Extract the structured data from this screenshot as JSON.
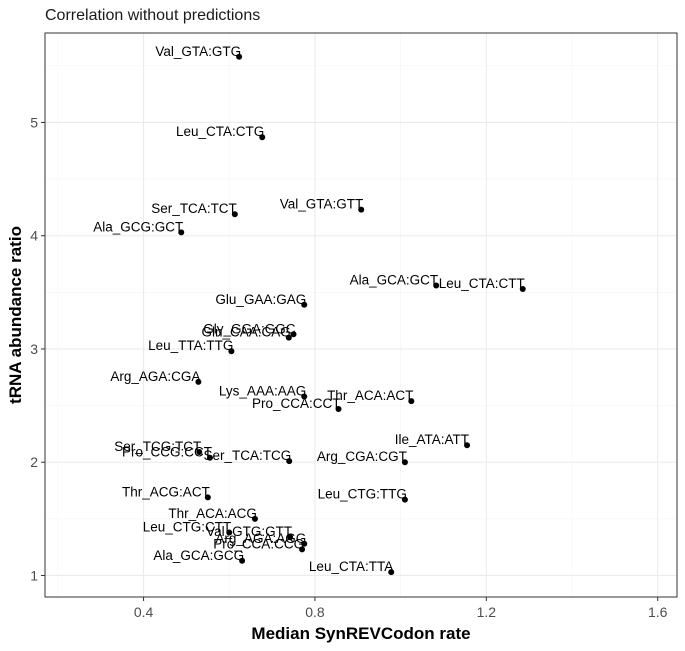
{
  "chart_data": {
    "type": "scatter",
    "title": "Correlation without predictions",
    "xlabel": "Median SynREVCodon rate",
    "ylabel": "tRNA abundance ratio",
    "xlim": [
      0.17,
      1.645
    ],
    "ylim": [
      0.81,
      5.79
    ],
    "x_ticks": [
      0.4,
      0.8,
      1.2,
      1.6
    ],
    "x_tick_labels": [
      "0.4",
      "0.8",
      "1.2",
      "1.6"
    ],
    "y_ticks": [
      1,
      2,
      3,
      4,
      5
    ],
    "y_tick_labels": [
      "1",
      "2",
      "3",
      "4",
      "5"
    ],
    "grid": true,
    "theme": "bw",
    "point_color": "#000000",
    "points": [
      {
        "label": "Val_GTA:GTG",
        "x": 0.623,
        "y": 5.58
      },
      {
        "label": "Leu_CTA:CTG",
        "x": 0.677,
        "y": 4.87
      },
      {
        "label": "Ser_TCA:TCT",
        "x": 0.613,
        "y": 4.19
      },
      {
        "label": "Val_GTA:GTT",
        "x": 0.908,
        "y": 4.23
      },
      {
        "label": "Ala_GCG:GCT",
        "x": 0.488,
        "y": 4.03
      },
      {
        "label": "Ala_GCA:GCT",
        "x": 1.083,
        "y": 3.56
      },
      {
        "label": "Leu_CTA:CTT",
        "x": 1.285,
        "y": 3.53
      },
      {
        "label": "Glu_GAA:GAG",
        "x": 0.775,
        "y": 3.39
      },
      {
        "label": "Gly_GGA:GGC",
        "x": 0.75,
        "y": 3.13
      },
      {
        "label": "Gln_CAA:CAG",
        "x": 0.739,
        "y": 3.1
      },
      {
        "label": "Leu_TTA:TTG",
        "x": 0.605,
        "y": 2.98
      },
      {
        "label": "Arg_AGA:CGA",
        "x": 0.528,
        "y": 2.71
      },
      {
        "label": "Lys_AAA:AAG",
        "x": 0.775,
        "y": 2.58
      },
      {
        "label": "Thr_ACA:ACT",
        "x": 1.025,
        "y": 2.54
      },
      {
        "label": "Pro_CCA:CCT",
        "x": 0.855,
        "y": 2.47
      },
      {
        "label": "Ile_ATA:ATT",
        "x": 1.155,
        "y": 2.15
      },
      {
        "label": "Ser_TCG:TCT",
        "x": 0.53,
        "y": 2.09
      },
      {
        "label": "Pro_CCG:CCT",
        "x": 0.555,
        "y": 2.04
      },
      {
        "label": "Ser_TCA:TCG",
        "x": 0.74,
        "y": 2.01
      },
      {
        "label": "Arg_CGA:CGT",
        "x": 1.01,
        "y": 2.0
      },
      {
        "label": "Thr_ACG:ACT",
        "x": 0.55,
        "y": 1.69
      },
      {
        "label": "Leu_CTG:TTG",
        "x": 1.01,
        "y": 1.67
      },
      {
        "label": "Thr_ACA:ACG",
        "x": 0.66,
        "y": 1.5
      },
      {
        "label": "Leu_CTG:CTT",
        "x": 0.6,
        "y": 1.38
      },
      {
        "label": "Val_GTG:GTT",
        "x": 0.742,
        "y": 1.34
      },
      {
        "label": "Arg_AGA:AGG",
        "x": 0.775,
        "y": 1.28
      },
      {
        "label": "Pro_CCA:CCG",
        "x": 0.77,
        "y": 1.23
      },
      {
        "label": "Ala_GCA:GCG",
        "x": 0.63,
        "y": 1.13
      },
      {
        "label": "Leu_CTA:TTA",
        "x": 0.978,
        "y": 1.03
      }
    ]
  }
}
